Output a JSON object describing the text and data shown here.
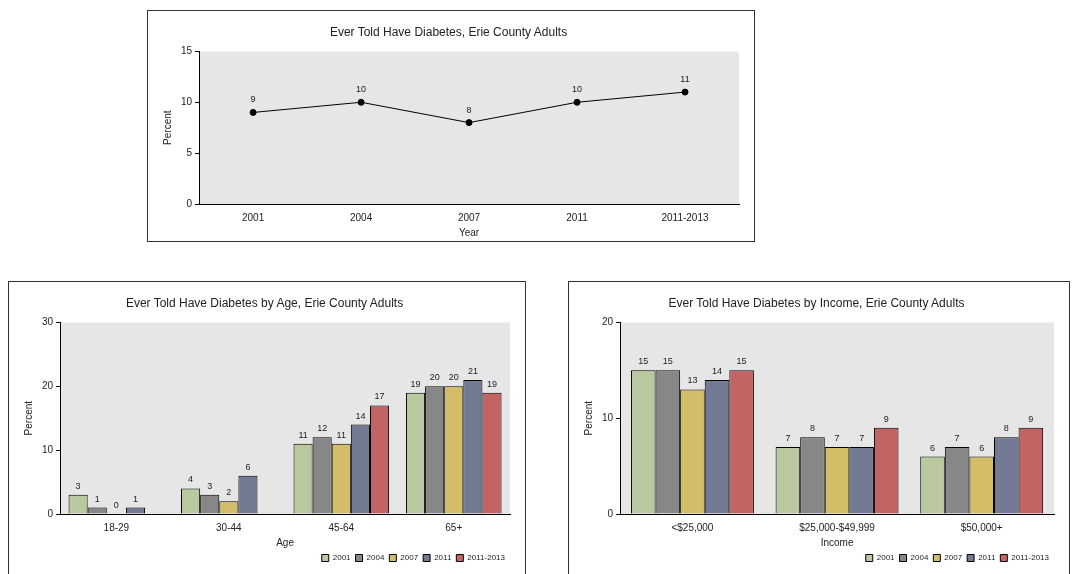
{
  "chart_data": [
    {
      "type": "line",
      "title": "Ever Told Have Diabetes, Erie County Adults",
      "xlabel": "Year",
      "ylabel": "Percent",
      "categories": [
        "2001",
        "2004",
        "2007",
        "2011",
        "2011-2013"
      ],
      "values": [
        9,
        10,
        8,
        10,
        11
      ],
      "color": "#000000",
      "marker": "circle",
      "line_style": "solid",
      "ylim": [
        0,
        15
      ],
      "yticks": [
        0,
        5,
        10,
        15
      ],
      "grid": false,
      "legend": false,
      "data_labels": true
    },
    {
      "type": "bar",
      "title": "Ever Told Have Diabetes by Age, Erie County Adults",
      "xlabel": "Age",
      "ylabel": "Percent",
      "categories": [
        "18-29",
        "30-44",
        "45-64",
        "65+"
      ],
      "series": [
        {
          "name": "2001",
          "color": "#bac8a0",
          "values": [
            3,
            4,
            11,
            19
          ]
        },
        {
          "name": "2004",
          "color": "#878787",
          "values": [
            1,
            3,
            12,
            20
          ]
        },
        {
          "name": "2007",
          "color": "#d4bd68",
          "values": [
            0,
            2,
            11,
            20
          ]
        },
        {
          "name": "2011",
          "color": "#737a94",
          "values": [
            1,
            6,
            14,
            21
          ]
        },
        {
          "name": "2011-2013",
          "color": "#c26464",
          "values": [
            null,
            null,
            17,
            19
          ]
        }
      ],
      "ylim": [
        0,
        30
      ],
      "yticks": [
        0,
        10,
        20,
        30
      ],
      "grid": false,
      "legend": "bottom right",
      "data_labels": true
    },
    {
      "type": "bar",
      "title": "Ever Told Have Diabetes by Income, Erie County Adults",
      "xlabel": "Income",
      "ylabel": "Percent",
      "categories": [
        "<$25,000",
        "$25,000-$49,999",
        "$50,000+"
      ],
      "series": [
        {
          "name": "2001",
          "color": "#bac8a0",
          "values": [
            15,
            7,
            6
          ]
        },
        {
          "name": "2004",
          "color": "#878787",
          "values": [
            15,
            8,
            7
          ]
        },
        {
          "name": "2007",
          "color": "#d4bd68",
          "values": [
            13,
            7,
            6
          ]
        },
        {
          "name": "2011",
          "color": "#737a94",
          "values": [
            14,
            7,
            8
          ]
        },
        {
          "name": "2011-2013",
          "color": "#c26464",
          "values": [
            15,
            9,
            9
          ]
        }
      ],
      "ylim": [
        0,
        20
      ],
      "yticks": [
        0,
        10,
        20
      ],
      "grid": false,
      "legend": "bottom right",
      "data_labels": true
    }
  ]
}
